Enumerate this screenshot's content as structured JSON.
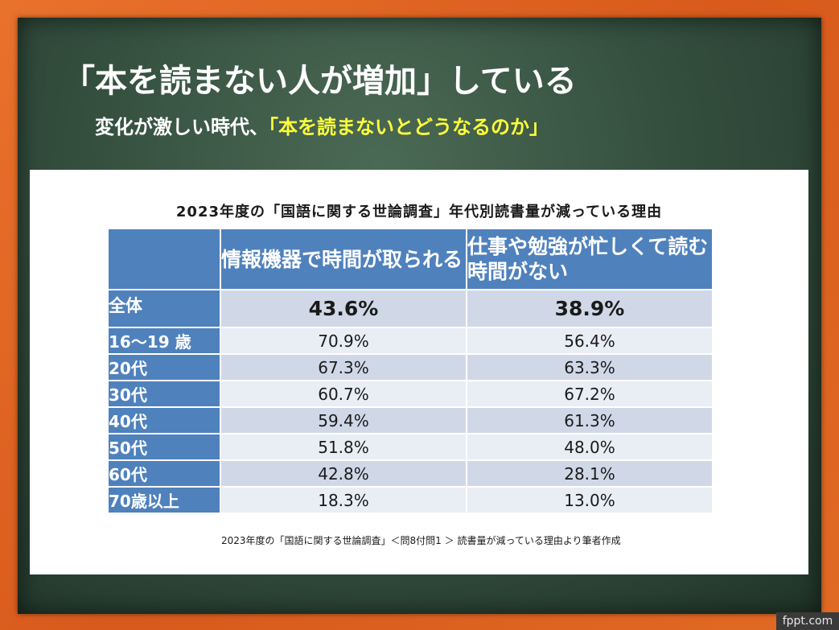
{
  "slide": {
    "title": "「本を読まない人が増加」している",
    "subtitle_prefix": "変化が激しい時代、",
    "subtitle_highlight": "「本を読まないとどうなるのか」",
    "highlight_color": "#ffff3a"
  },
  "table": {
    "title": "2023年度の「国語に関する世論調査」年代別読書量が減っている理由",
    "headers": [
      "",
      "情報機器で時間が取られる",
      "仕事や勉強が忙しくて読む時間がない"
    ],
    "header_color": "#4f81bd",
    "total": {
      "label": "全体",
      "values": [
        "43.6%",
        "38.9%"
      ]
    },
    "rows": [
      {
        "label": "16～19 歳",
        "values": [
          "70.9%",
          "56.4%"
        ]
      },
      {
        "label": "20代",
        "values": [
          "67.3%",
          "63.3%"
        ]
      },
      {
        "label": "30代",
        "values": [
          "60.7%",
          "67.2%"
        ]
      },
      {
        "label": "40代",
        "values": [
          "59.4%",
          "61.3%"
        ]
      },
      {
        "label": "50代",
        "values": [
          "51.8%",
          "48.0%"
        ]
      },
      {
        "label": "60代",
        "values": [
          "42.8%",
          "28.1%"
        ]
      },
      {
        "label": "70歳以上",
        "values": [
          "18.3%",
          "13.0%"
        ]
      }
    ],
    "source": "2023年度の「国語に関する世論調査」＜問8付問1 ＞ 読書量が減っている理由より筆者作成"
  },
  "watermark": "fppt.com"
}
